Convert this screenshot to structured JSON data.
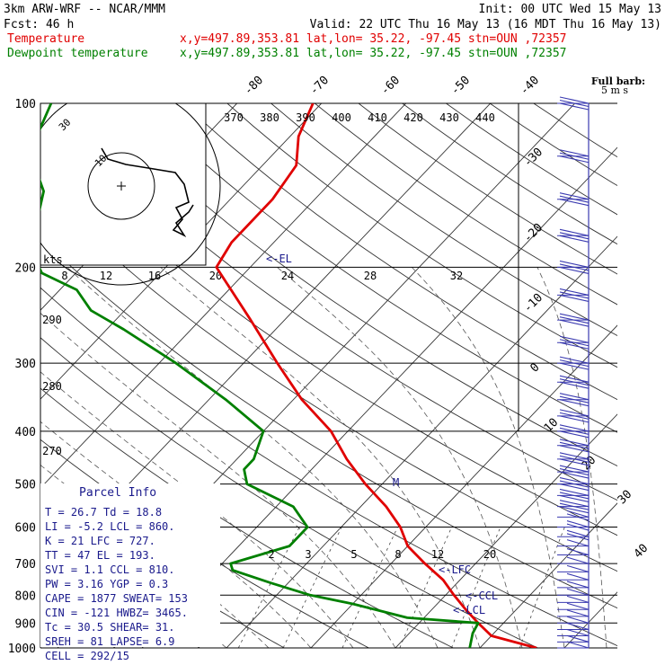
{
  "header": {
    "line1_left": "3km ARW-WRF -- NCAR/MMM",
    "line1_right": "Init: 00 UTC Wed 15 May 13",
    "line2_left": "Fcst:   46 h",
    "line2_right": "Valid: 22 UTC Thu 16 May 13 (16 MDT Thu 16 May 13)",
    "line3_label": "Temperature",
    "line3_info": "x,y=497.89,353.81   lat,lon= 35.22, -97.45  stn=OUN ,72357",
    "line4_label": "Dewpoint temperature",
    "line4_info": "x,y=497.89,353.81   lat,lon= 35.22, -97.45  stn=OUN ,72357"
  },
  "colors": {
    "temperature": "#e00000",
    "dewpoint": "#008000",
    "barbs": "#3a3ab0",
    "annotation": "#1a1a8c"
  },
  "chart_data": {
    "type": "skew-t log-p sounding",
    "pressure_levels": [
      100,
      200,
      300,
      400,
      500,
      600,
      700,
      800,
      900,
      1000
    ],
    "isotherm_labels": [
      "-80",
      "-70",
      "-60",
      "-50",
      "-40",
      "-30",
      "-20",
      "-10",
      "0",
      "10",
      "20",
      "30",
      "40"
    ],
    "theta_labels": [
      "370",
      "380",
      "390",
      "400",
      "410",
      "420",
      "430",
      "440"
    ],
    "theta_side_labels": [
      "290",
      "280",
      "270"
    ],
    "mixing_ratio_labels": [
      "2",
      "3",
      "5",
      "8",
      "12",
      "20"
    ],
    "full_barb_label": "Full barb:",
    "full_barb_value": "5 m s",
    "temperature": {
      "name": "Temperature",
      "points": [
        [
          1000,
          26.7
        ],
        [
          950,
          20
        ],
        [
          900,
          17
        ],
        [
          850,
          14
        ],
        [
          800,
          11
        ],
        [
          750,
          8
        ],
        [
          700,
          4
        ],
        [
          650,
          0
        ],
        [
          600,
          -3
        ],
        [
          550,
          -7
        ],
        [
          500,
          -12
        ],
        [
          450,
          -17
        ],
        [
          400,
          -22
        ],
        [
          350,
          -29
        ],
        [
          300,
          -36
        ],
        [
          250,
          -44
        ],
        [
          200,
          -54
        ],
        [
          180,
          -55
        ],
        [
          150,
          -55
        ],
        [
          130,
          -56
        ],
        [
          115,
          -59
        ],
        [
          100,
          -61
        ]
      ]
    },
    "dewpoint": {
      "name": "Dewpoint temperature",
      "points": [
        [
          1000,
          18.8
        ],
        [
          940,
          17.5
        ],
        [
          900,
          17
        ],
        [
          880,
          8
        ],
        [
          830,
          0
        ],
        [
          800,
          -6
        ],
        [
          760,
          -12
        ],
        [
          720,
          -18
        ],
        [
          700,
          -19
        ],
        [
          650,
          -14
        ],
        [
          600,
          -14
        ],
        [
          550,
          -18
        ],
        [
          500,
          -26
        ],
        [
          470,
          -28
        ],
        [
          450,
          -28
        ],
        [
          400,
          -30
        ],
        [
          350,
          -38
        ],
        [
          300,
          -48
        ],
        [
          260,
          -58
        ],
        [
          240,
          -64
        ],
        [
          220,
          -68
        ],
        [
          205,
          -74
        ],
        [
          195,
          -76
        ],
        [
          175,
          -79
        ],
        [
          160,
          -81
        ],
        [
          145,
          -83
        ],
        [
          130,
          -87
        ],
        [
          115,
          -90
        ],
        [
          100,
          -92
        ]
      ]
    },
    "level_labels": {
      "el": "<-EL",
      "lfc": "<-LFC",
      "ccl": "<-CCL",
      "lcl": "<-LCL",
      "m": "M"
    },
    "hodograph": {
      "unit": "kts",
      "speed_rings": [
        "30",
        "10"
      ],
      "speed_ticks": [
        "8",
        "12",
        "16",
        "20",
        "24",
        "28",
        "32"
      ]
    },
    "parcel_info": {
      "title": "Parcel  Info",
      "rows": [
        "T   =   26.7  Td =  18.8",
        "LI  =   -5.2  LCL =  860.",
        "K   =     21  LFC =  727.",
        "TT  =     47  EL  =  193.",
        "SVI =    1.1  CCL =  810.",
        "PW  =   3.16  YGP =   0.3",
        "CAPE =  1877  SWEAT=  153",
        "CIN  =  -121  HWBZ= 3465.",
        "Tc   =  30.5  SHEAR=  31.",
        "SREH =    81  LAPSE=  6.9",
        "CELL = 292/15"
      ]
    }
  }
}
